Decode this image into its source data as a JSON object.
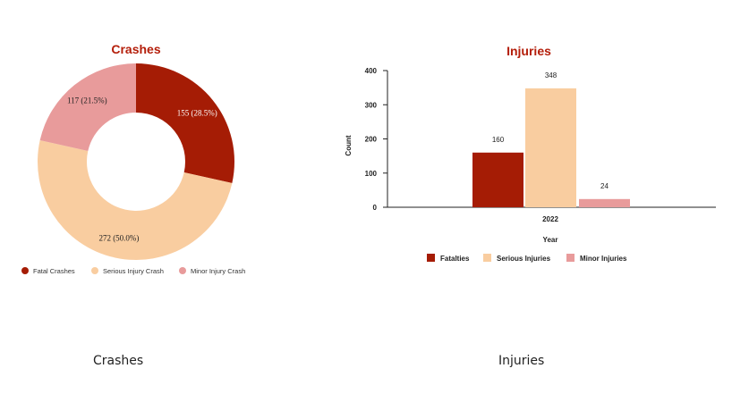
{
  "colors": {
    "fatal": "#a51c05",
    "serious": "#f9cda0",
    "minor": "#e89b9b",
    "title": "#b41e0a",
    "axis": "#222222"
  },
  "chart_data": [
    {
      "type": "pie",
      "title": "Crashes",
      "donut": true,
      "legend_position": "bottom",
      "slices": [
        {
          "name": "Fatal Crashes",
          "value": 155,
          "label": "155 (28.5%)"
        },
        {
          "name": "Serious Injury Crash",
          "value": 272,
          "label": "272 (50.0%)"
        },
        {
          "name": "Minor Injury Crash",
          "value": 117,
          "label": "117 (21.5%)"
        }
      ]
    },
    {
      "type": "bar",
      "title": "Injuries",
      "xlabel": "Year",
      "ylabel": "Count",
      "categories": [
        "2022"
      ],
      "ylim": [
        0,
        400
      ],
      "yticks": [
        0,
        100,
        200,
        300,
        400
      ],
      "legend_position": "bottom",
      "grid": false,
      "series": [
        {
          "name": "Fatalties",
          "values": [
            160
          ]
        },
        {
          "name": "Serious Injuries",
          "values": [
            348
          ]
        },
        {
          "name": "Minor Injuries",
          "values": [
            24
          ]
        }
      ]
    }
  ],
  "captions": {
    "left": "Crashes",
    "right": "Injuries"
  }
}
